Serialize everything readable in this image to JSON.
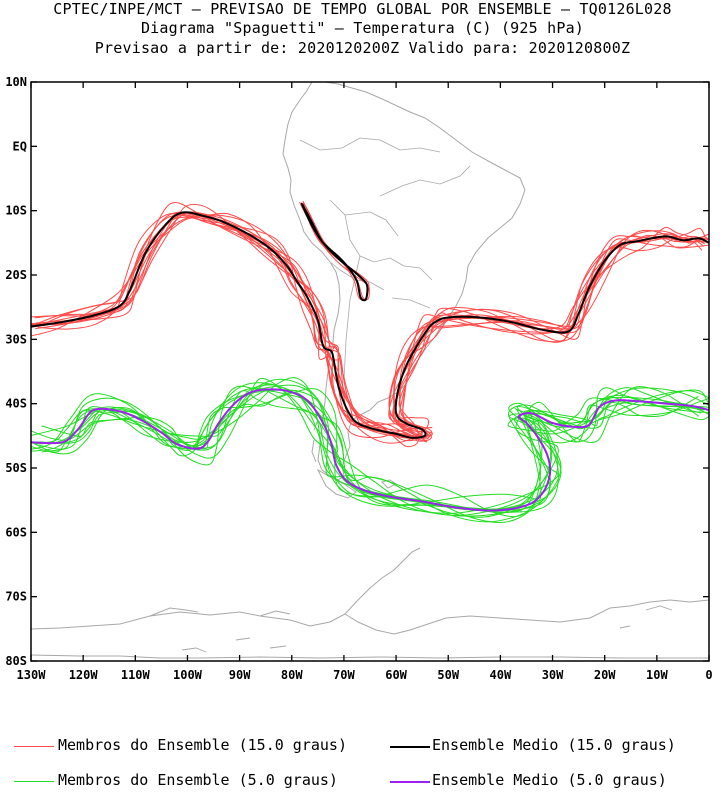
{
  "header": {
    "line1": "CPTEC/INPE/MCT – PREVISAO DE TEMPO GLOBAL POR ENSEMBLE – TQ0126L028",
    "line2": "Diagrama \"Spaguetti\" – Temperatura (C) (925 hPa)",
    "line3": "Previsao a partir de: 2020120200Z  Valido para: 2020120800Z"
  },
  "chart_data": {
    "type": "line",
    "title": "Diagrama \"Spaguetti\" – Temperatura (C) (925 hPa)",
    "xlim": [
      -130,
      0
    ],
    "ylim": [
      -80,
      10
    ],
    "x_ticks": [
      {
        "value": -130,
        "label": "130W"
      },
      {
        "value": -120,
        "label": "120W"
      },
      {
        "value": -110,
        "label": "110W"
      },
      {
        "value": -100,
        "label": "100W"
      },
      {
        "value": -90,
        "label": "90W"
      },
      {
        "value": -80,
        "label": "80W"
      },
      {
        "value": -70,
        "label": "70W"
      },
      {
        "value": -60,
        "label": "60W"
      },
      {
        "value": -50,
        "label": "50W"
      },
      {
        "value": -40,
        "label": "40W"
      },
      {
        "value": -30,
        "label": "30W"
      },
      {
        "value": -20,
        "label": "20W"
      },
      {
        "value": -10,
        "label": "10W"
      },
      {
        "value": 0,
        "label": "0"
      }
    ],
    "y_ticks": [
      {
        "value": 10,
        "label": "10N"
      },
      {
        "value": 0,
        "label": "EQ"
      },
      {
        "value": -10,
        "label": "10S"
      },
      {
        "value": -20,
        "label": "20S"
      },
      {
        "value": -30,
        "label": "30S"
      },
      {
        "value": -40,
        "label": "40S"
      },
      {
        "value": -50,
        "label": "50S"
      },
      {
        "value": -60,
        "label": "60S"
      },
      {
        "value": -70,
        "label": "70S"
      },
      {
        "value": -80,
        "label": "80S"
      }
    ],
    "colors": {
      "members_15": "#ff4a4a",
      "mean_15": "#000000",
      "members_5": "#22dd22",
      "mean_5": "#a020f0",
      "coast": "#a8a8a8"
    },
    "series": [
      {
        "name": "Ensemble Medio (15.0 graus)",
        "role": "mean_15",
        "x": [
          -130,
          -124,
          -118,
          -113,
          -111,
          -108,
          -104,
          -101,
          -97,
          -93,
          -88,
          -84,
          -81,
          -79,
          -77,
          -75,
          -74,
          -72.5,
          -72,
          -71,
          -69,
          -67,
          -63,
          -60,
          -57,
          -54.5,
          -55,
          -58,
          -60,
          -59.5,
          -58,
          -56,
          -54,
          -52.5,
          -50,
          -44,
          -38,
          -32,
          -27,
          -25,
          -23,
          -20,
          -17,
          -14,
          -11,
          -8,
          -5,
          -2,
          0
        ],
        "y": [
          -28,
          -27.3,
          -26.3,
          -24.8,
          -22.3,
          -16.5,
          -12,
          -10.3,
          -10.8,
          -11.8,
          -13.8,
          -16,
          -18.5,
          -21,
          -23.5,
          -27,
          -31,
          -31.8,
          -33,
          -37.5,
          -41.5,
          -43.2,
          -44.2,
          -44.7,
          -45.3,
          -45,
          -44,
          -43.1,
          -41.5,
          -37.5,
          -34,
          -31,
          -28.5,
          -27.3,
          -26.6,
          -26.6,
          -27.3,
          -28.5,
          -28.8,
          -26,
          -22,
          -17.8,
          -15.3,
          -14.8,
          -14.3,
          -14,
          -14.6,
          -14.3,
          -15
        ]
      },
      {
        "name": "Ensemble Medio (15.0 graus)",
        "role": "mean_15_closed",
        "x": [
          -78,
          -76,
          -74,
          -71,
          -68,
          -66,
          -65.5,
          -65.8,
          -66.8,
          -67.5,
          -69,
          -71,
          -74,
          -76,
          -77.5,
          -78
        ],
        "y": [
          -9,
          -12,
          -15,
          -17.5,
          -19.5,
          -21,
          -22,
          -23.8,
          -23.5,
          -21,
          -19,
          -17.2,
          -15,
          -12.5,
          -10,
          -9
        ]
      },
      {
        "name": "Ensemble Medio (5.0 graus)",
        "role": "mean_5",
        "x": [
          -130,
          -124,
          -121,
          -118,
          -113,
          -109,
          -105,
          -102,
          -98,
          -96,
          -94,
          -91,
          -88,
          -85,
          -81,
          -77,
          -74,
          -72.5,
          -71.5,
          -69.5,
          -66,
          -61,
          -55,
          -48,
          -41,
          -35,
          -32,
          -30.5,
          -31,
          -33,
          -35,
          -36.5,
          -34,
          -30,
          -26,
          -23,
          -21,
          -18,
          -14,
          -8,
          -3,
          0
        ],
        "y": [
          -46,
          -46,
          -44,
          -41,
          -41.2,
          -42.5,
          -44.5,
          -46.3,
          -47,
          -45.8,
          -43,
          -40,
          -38.3,
          -37.8,
          -38,
          -39.5,
          -43,
          -46,
          -49.5,
          -52,
          -53.5,
          -54.5,
          -55.2,
          -56.2,
          -56.6,
          -55.8,
          -54,
          -51,
          -48,
          -45,
          -43,
          -42,
          -41.5,
          -43,
          -43.6,
          -43.3,
          -40.5,
          -39.5,
          -39.6,
          -40,
          -40.4,
          -41
        ]
      }
    ]
  },
  "legend": {
    "items": [
      {
        "label": "Membros do Ensemble (15.0 graus)",
        "color": "#ff4a4a"
      },
      {
        "label": "Ensemble Medio (15.0 graus)",
        "color": "#000000"
      },
      {
        "label": "Membros do Ensemble (5.0 graus)",
        "color": "#22dd22"
      },
      {
        "label": "Ensemble Medio (5.0 graus)",
        "color": "#a020f0"
      }
    ]
  }
}
